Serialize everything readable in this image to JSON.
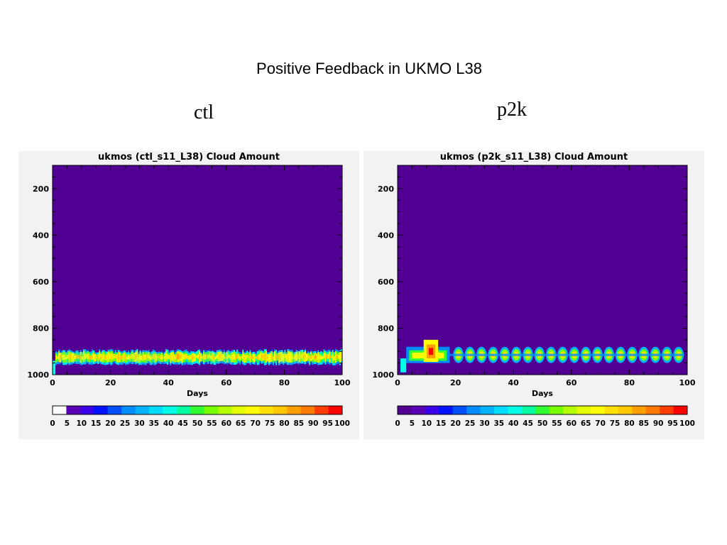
{
  "slide": {
    "title": "Positive Feedback in UKMO L38"
  },
  "panel_labels": {
    "left": "ctl",
    "right": "p2k"
  },
  "colorbar": {
    "ticks": [
      "0",
      "5",
      "10",
      "15",
      "20",
      "25",
      "30",
      "35",
      "40",
      "45",
      "50",
      "55",
      "60",
      "65",
      "70",
      "75",
      "80",
      "85",
      "90",
      "95",
      "100"
    ],
    "colors": [
      "#520094",
      "#5a00b4",
      "#3a00e8",
      "#0012ff",
      "#0050ff",
      "#008cff",
      "#00b4ff",
      "#00dcff",
      "#00ffe6",
      "#00ffa0",
      "#32ff32",
      "#78ff00",
      "#b4ff00",
      "#e6ff00",
      "#ffff00",
      "#ffe100",
      "#ffc800",
      "#ffa000",
      "#ff7800",
      "#ff3c00",
      "#ff0000"
    ],
    "background_color": "#520094"
  },
  "chart_data": [
    {
      "type": "heatmap",
      "title": "ukmos (ctl_s11_L38) Cloud Amount",
      "xlabel": "Days",
      "ylabel": "",
      "x_ticks": [
        "0",
        "20",
        "40",
        "60",
        "80",
        "100"
      ],
      "y_ticks": [
        "200",
        "400",
        "600",
        "800",
        "1000"
      ],
      "xlim": [
        0,
        100
      ],
      "ylim": [
        1000,
        100
      ],
      "value_range": [
        0,
        100
      ],
      "cloud_band": {
        "pressure_range": [
          890,
          960
        ],
        "day_range": [
          1,
          100
        ],
        "pattern": "noisy"
      }
    },
    {
      "type": "heatmap",
      "title": "ukmos (p2k_s11_L38) Cloud Amount",
      "xlabel": "Days",
      "ylabel": "",
      "x_ticks": [
        "0",
        "20",
        "40",
        "60",
        "80",
        "100"
      ],
      "y_ticks": [
        "200",
        "400",
        "600",
        "800",
        "1000"
      ],
      "xlim": [
        0,
        100
      ],
      "ylim": [
        1000,
        100
      ],
      "value_range": [
        0,
        100
      ],
      "cloud_band": {
        "pressure_range": [
          860,
          940
        ],
        "day_range": [
          1,
          100
        ],
        "pattern": "periodic",
        "period_days": 4
      }
    }
  ]
}
